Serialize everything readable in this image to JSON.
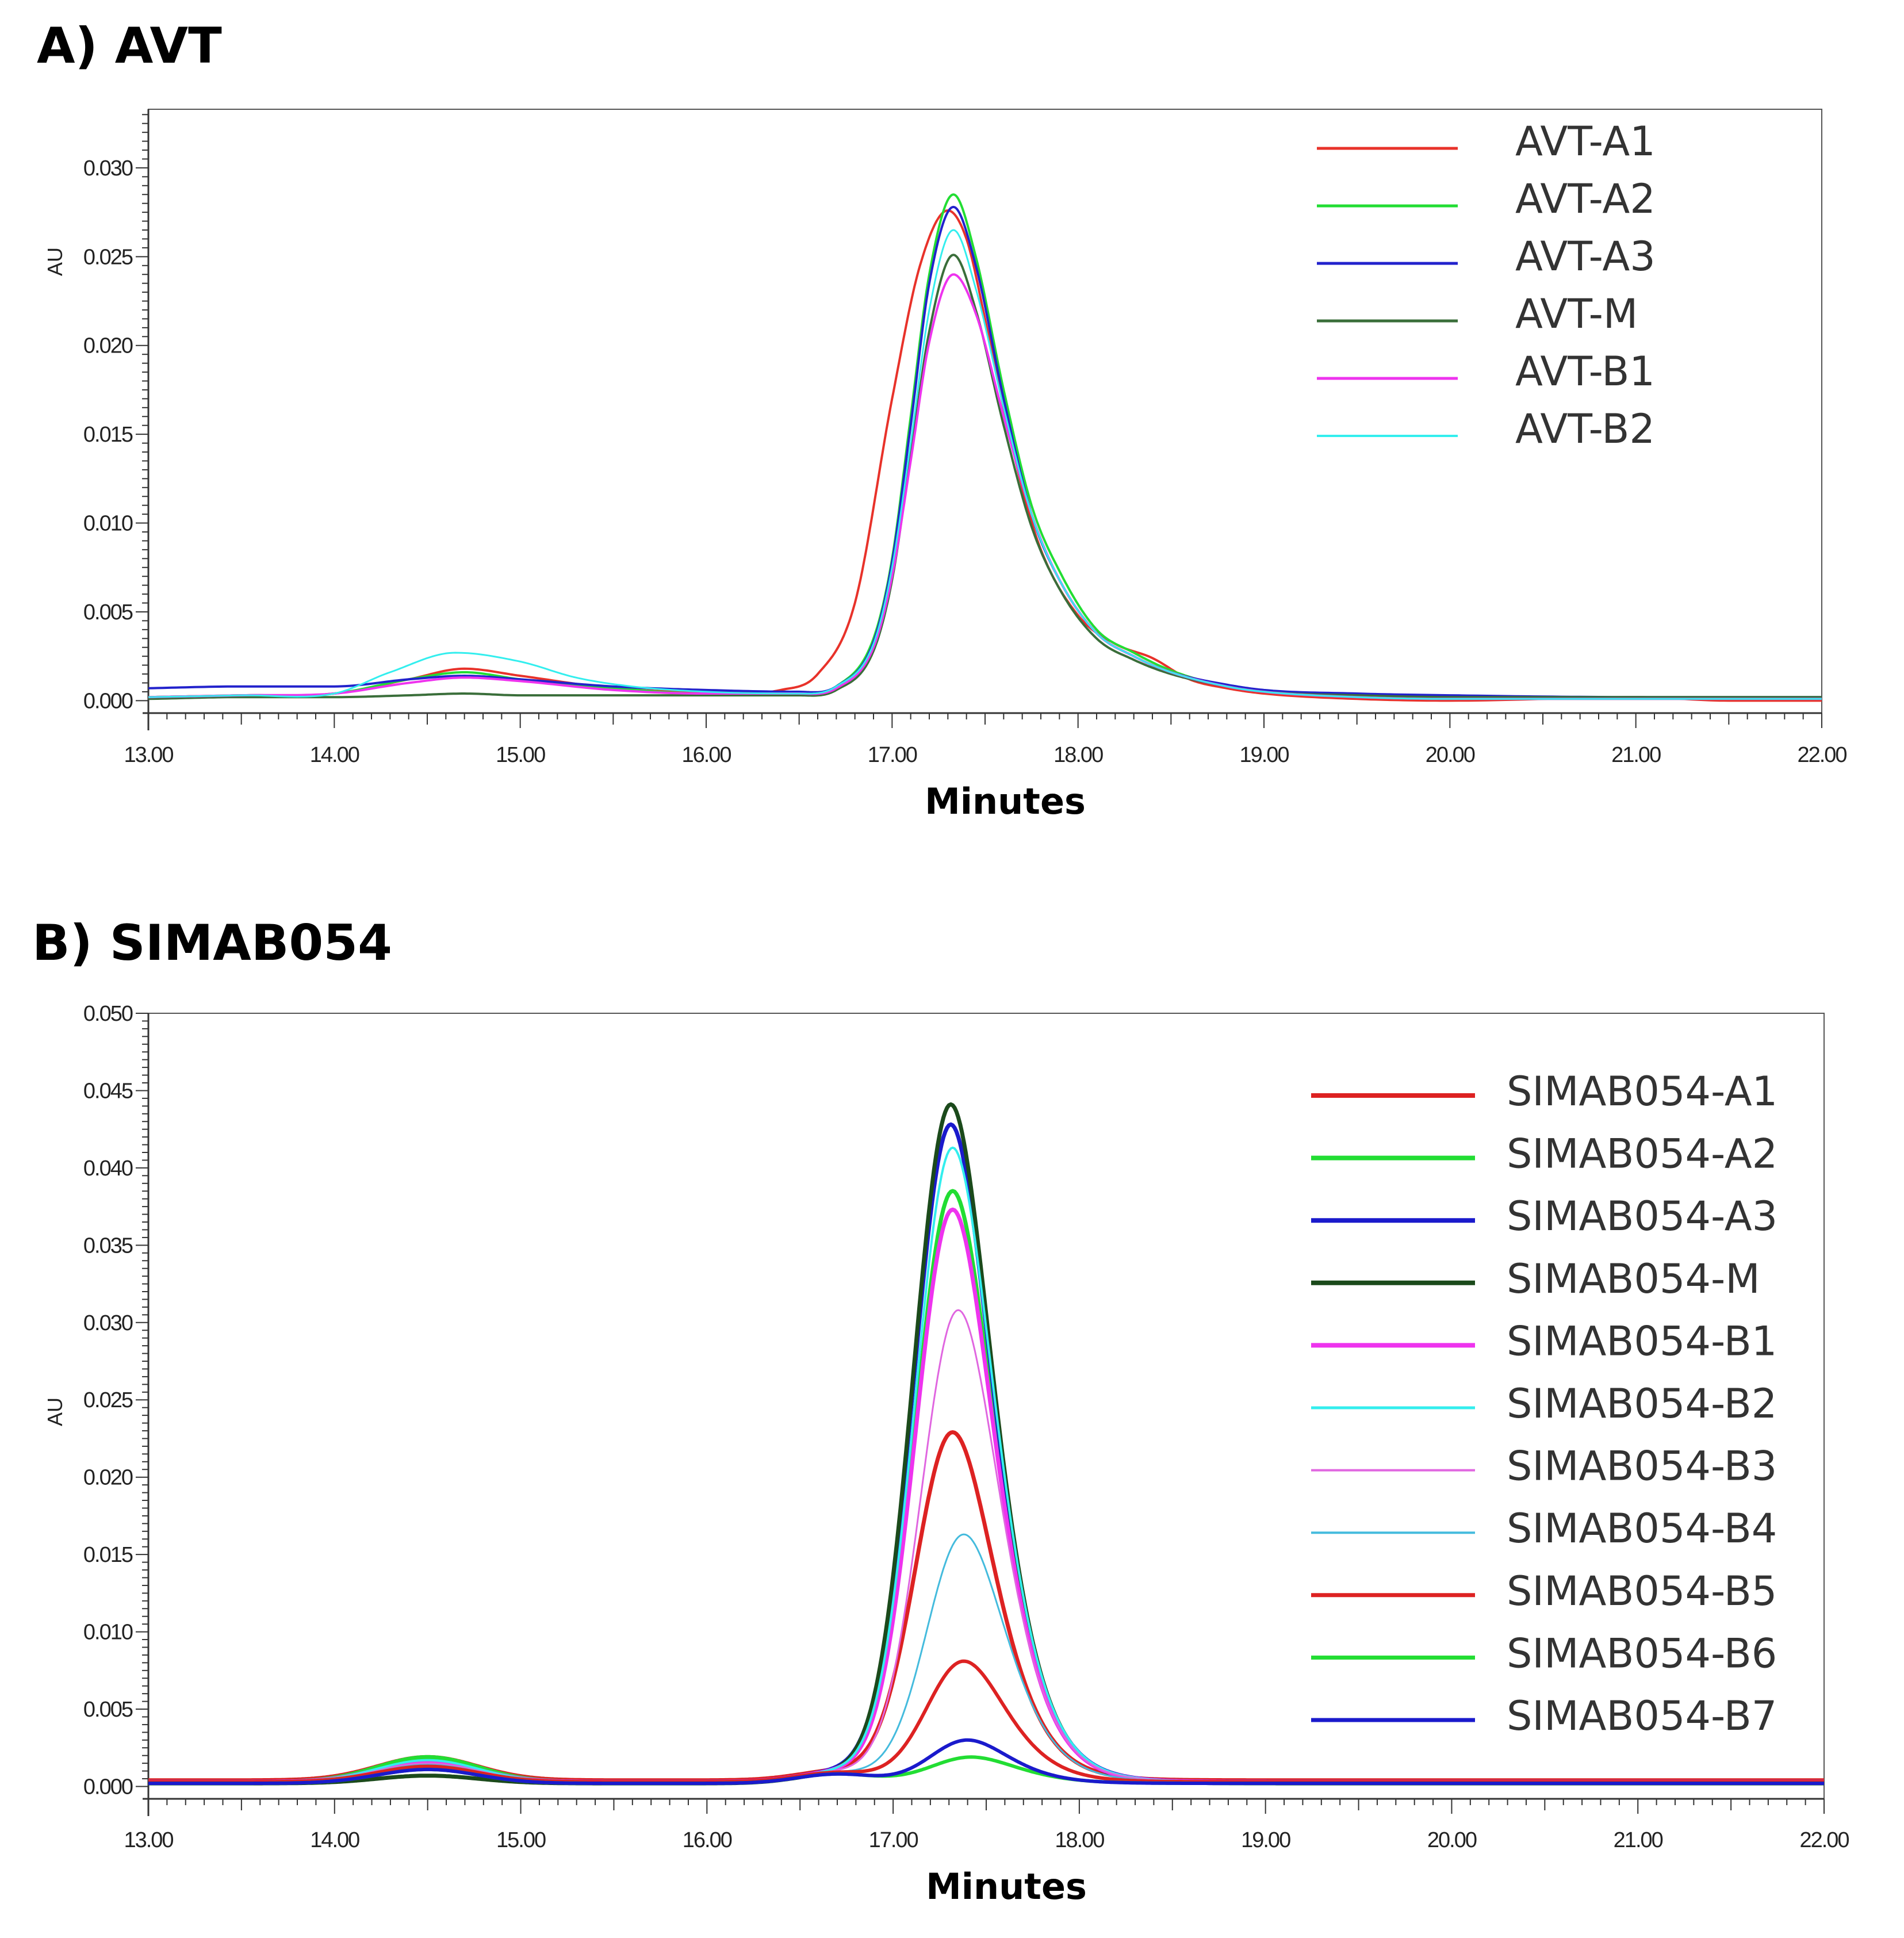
{
  "chart_data": [
    {
      "type": "line",
      "title": "A) AVT",
      "xlabel": "Minutes",
      "ylabel": "AU",
      "xlim": [
        13.0,
        22.0
      ],
      "ylim": [
        -0.0007,
        0.0333
      ],
      "xticks": [
        "13.00",
        "14.00",
        "15.00",
        "16.00",
        "17.00",
        "18.00",
        "19.00",
        "20.00",
        "21.00",
        "22.00"
      ],
      "yticks": [
        "0.000",
        "0.005",
        "0.010",
        "0.015",
        "0.020",
        "0.025",
        "0.030"
      ],
      "legend_position": "top-right",
      "series": [
        {
          "name": "AVT-A1",
          "color": "#e8322a",
          "width": 4,
          "x": [
            13.0,
            13.5,
            14.0,
            14.4,
            14.7,
            15.0,
            15.5,
            16.0,
            16.4,
            16.6,
            16.8,
            17.0,
            17.15,
            17.3,
            17.4,
            17.5,
            17.6,
            17.7,
            17.8,
            18.0,
            18.2,
            18.4,
            18.6,
            18.8,
            19.0,
            19.5,
            20.0,
            21.0,
            21.5,
            22.0
          ],
          "y": [
            0.0002,
            0.0003,
            0.0004,
            0.0012,
            0.0018,
            0.0014,
            0.0007,
            0.0005,
            0.0006,
            0.0015,
            0.0055,
            0.017,
            0.0245,
            0.0276,
            0.026,
            0.0215,
            0.0165,
            0.012,
            0.0085,
            0.0048,
            0.0032,
            0.0024,
            0.0012,
            0.0007,
            0.0004,
            0.0001,
            0.0,
            0.0002,
            0.0,
            0.0
          ]
        },
        {
          "name": "AVT-A2",
          "color": "#22dd33",
          "width": 4,
          "x": [
            13.0,
            13.5,
            14.0,
            14.4,
            14.7,
            15.0,
            15.5,
            16.0,
            16.5,
            16.7,
            16.9,
            17.0,
            17.1,
            17.2,
            17.33,
            17.45,
            17.6,
            17.75,
            17.9,
            18.1,
            18.3,
            18.5,
            18.8,
            19.0,
            19.5,
            20.0,
            21.0,
            22.0
          ],
          "y": [
            0.0002,
            0.0003,
            0.0004,
            0.0012,
            0.0016,
            0.0012,
            0.0007,
            0.0004,
            0.0004,
            0.0008,
            0.0035,
            0.008,
            0.016,
            0.024,
            0.0285,
            0.025,
            0.0175,
            0.011,
            0.0073,
            0.004,
            0.0027,
            0.0017,
            0.0008,
            0.0005,
            0.0002,
            0.0001,
            0.0001,
            0.0001
          ]
        },
        {
          "name": "AVT-A3",
          "color": "#2222cc",
          "width": 4,
          "x": [
            13.0,
            13.5,
            14.0,
            14.4,
            14.7,
            15.0,
            15.5,
            16.0,
            16.5,
            16.7,
            16.9,
            17.0,
            17.1,
            17.2,
            17.33,
            17.45,
            17.6,
            17.75,
            17.9,
            18.1,
            18.3,
            18.5,
            18.8,
            19.0,
            19.5,
            20.0,
            21.0,
            22.0
          ],
          "y": [
            0.0007,
            0.0008,
            0.0008,
            0.0012,
            0.0014,
            0.0012,
            0.0008,
            0.0006,
            0.0005,
            0.0008,
            0.0033,
            0.0078,
            0.0155,
            0.0235,
            0.0278,
            0.0245,
            0.017,
            0.0105,
            0.0068,
            0.0038,
            0.0025,
            0.0016,
            0.0009,
            0.0006,
            0.0004,
            0.0003,
            0.0002,
            0.0002
          ]
        },
        {
          "name": "AVT-M",
          "color": "#3a6e3a",
          "width": 4,
          "x": [
            13.0,
            13.5,
            14.0,
            14.4,
            14.7,
            15.0,
            15.5,
            16.0,
            16.5,
            16.7,
            16.9,
            17.0,
            17.1,
            17.2,
            17.33,
            17.45,
            17.6,
            17.75,
            17.9,
            18.1,
            18.3,
            18.5,
            18.8,
            19.0,
            19.5,
            20.0,
            21.0,
            22.0
          ],
          "y": [
            0.0001,
            0.0002,
            0.0002,
            0.0003,
            0.0004,
            0.0003,
            0.0003,
            0.0003,
            0.0003,
            0.0006,
            0.0028,
            0.0068,
            0.0138,
            0.0208,
            0.0251,
            0.022,
            0.0155,
            0.0098,
            0.0063,
            0.0035,
            0.0023,
            0.0015,
            0.0008,
            0.0005,
            0.0003,
            0.0002,
            0.0002,
            0.0002
          ]
        },
        {
          "name": "AVT-B1",
          "color": "#ee33ee",
          "width": 4,
          "x": [
            13.0,
            13.5,
            14.0,
            14.4,
            14.7,
            15.0,
            15.5,
            16.0,
            16.5,
            16.7,
            16.9,
            17.0,
            17.1,
            17.2,
            17.33,
            17.45,
            17.6,
            17.75,
            17.9,
            18.1,
            18.3,
            18.5,
            18.8,
            19.0,
            19.5,
            20.0,
            21.0,
            22.0
          ],
          "y": [
            0.0002,
            0.0003,
            0.0004,
            0.001,
            0.0013,
            0.0011,
            0.0006,
            0.0004,
            0.0004,
            0.0007,
            0.003,
            0.007,
            0.0135,
            0.0202,
            0.024,
            0.0218,
            0.016,
            0.0105,
            0.0068,
            0.0038,
            0.0025,
            0.0016,
            0.0008,
            0.0005,
            0.0002,
            0.0001,
            0.0001,
            0.0001
          ]
        },
        {
          "name": "AVT-B2",
          "color": "#33eeee",
          "width": 3,
          "x": [
            13.0,
            13.5,
            14.0,
            14.3,
            14.65,
            15.0,
            15.3,
            15.6,
            16.0,
            16.5,
            16.7,
            16.9,
            17.0,
            17.1,
            17.2,
            17.33,
            17.45,
            17.6,
            17.75,
            17.9,
            18.1,
            18.3,
            18.5,
            18.8,
            19.0,
            19.5,
            20.0,
            21.0,
            22.0
          ],
          "y": [
            0.0002,
            0.0003,
            0.0004,
            0.0016,
            0.0027,
            0.0022,
            0.0013,
            0.0008,
            0.0005,
            0.0004,
            0.0008,
            0.0032,
            0.0075,
            0.0145,
            0.022,
            0.0265,
            0.0232,
            0.0165,
            0.0105,
            0.0068,
            0.0038,
            0.0025,
            0.0016,
            0.0008,
            0.0005,
            0.0002,
            0.0001,
            0.0001,
            0.0001
          ]
        }
      ]
    },
    {
      "type": "line",
      "title": "B) SIMAB054",
      "xlabel": "Minutes",
      "ylabel": "AU",
      "xlim": [
        13.0,
        22.0
      ],
      "ylim": [
        -0.0008,
        0.05
      ],
      "xticks": [
        "13.00",
        "14.00",
        "15.00",
        "16.00",
        "17.00",
        "18.00",
        "19.00",
        "20.00",
        "21.00",
        "22.00"
      ],
      "yticks": [
        "0.000",
        "0.005",
        "0.010",
        "0.015",
        "0.020",
        "0.025",
        "0.030",
        "0.035",
        "0.040",
        "0.045",
        "0.050"
      ],
      "legend_position": "top-right",
      "series": [
        {
          "name": "SIMAB054-A1",
          "color": "#dd2222",
          "width": 7,
          "peak": 0.0225,
          "mu": 17.32,
          "sigma": 0.2,
          "tail": 0.11,
          "base": 0.0004,
          "hump": 0.0015
        },
        {
          "name": "SIMAB054-A2",
          "color": "#22dd33",
          "width": 7,
          "peak": 0.0382,
          "mu": 17.32,
          "sigma": 0.2,
          "tail": 0.11,
          "base": 0.0003,
          "hump": 0.0016
        },
        {
          "name": "SIMAB054-A3",
          "color": "#1a1acc",
          "width": 7,
          "peak": 0.0425,
          "mu": 17.31,
          "sigma": 0.2,
          "tail": 0.11,
          "base": 0.0003,
          "hump": 0.0012
        },
        {
          "name": "SIMAB054-M",
          "color": "#1b4a1b",
          "width": 7,
          "peak": 0.0439,
          "mu": 17.31,
          "sigma": 0.2,
          "tail": 0.11,
          "base": 0.0002,
          "hump": 0.0005
        },
        {
          "name": "SIMAB054-B1",
          "color": "#ee33ee",
          "width": 7,
          "peak": 0.037,
          "mu": 17.32,
          "sigma": 0.2,
          "tail": 0.11,
          "base": 0.0003,
          "hump": 0.0013
        },
        {
          "name": "SIMAB054-B2",
          "color": "#33eeee",
          "width": 4,
          "peak": 0.041,
          "mu": 17.32,
          "sigma": 0.2,
          "tail": 0.11,
          "base": 0.0003,
          "hump": 0.0014
        },
        {
          "name": "SIMAB054-B3",
          "color": "#e066e0",
          "width": 3,
          "peak": 0.0305,
          "mu": 17.35,
          "sigma": 0.2,
          "tail": 0.11,
          "base": 0.0003,
          "hump": 0.0012
        },
        {
          "name": "SIMAB054-B4",
          "color": "#44bbdd",
          "width": 3,
          "peak": 0.016,
          "mu": 17.38,
          "sigma": 0.2,
          "tail": 0.11,
          "base": 0.0003,
          "hump": 0.0011
        },
        {
          "name": "SIMAB054-B5",
          "color": "#dd2222",
          "width": 6,
          "peak": 0.0078,
          "mu": 17.38,
          "sigma": 0.2,
          "tail": 0.11,
          "base": 0.0003,
          "hump": 0.001
        },
        {
          "name": "SIMAB054-B6",
          "color": "#22dd33",
          "width": 6,
          "peak": 0.0017,
          "mu": 17.42,
          "sigma": 0.22,
          "tail": 0.11,
          "base": 0.0002,
          "hump": 0.0009
        },
        {
          "name": "SIMAB054-B7",
          "color": "#1a1acc",
          "width": 6,
          "peak": 0.0028,
          "mu": 17.4,
          "sigma": 0.2,
          "tail": 0.11,
          "base": 0.0002,
          "hump": 0.0009
        }
      ]
    }
  ]
}
